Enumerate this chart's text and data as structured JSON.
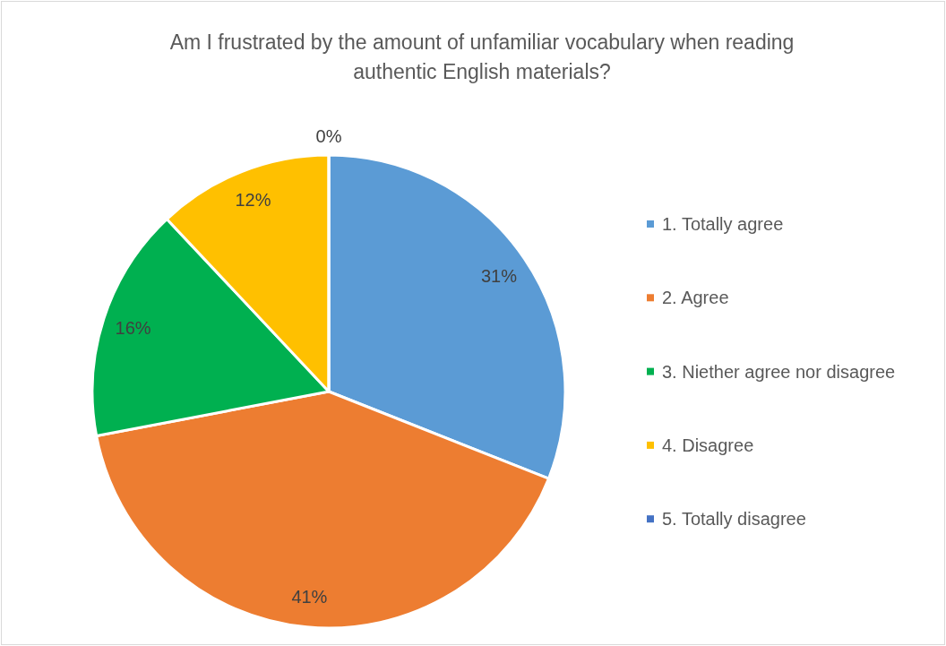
{
  "chart_data": {
    "type": "pie",
    "title": "Am I frustrated by the amount of unfamiliar vocabulary when reading authentic English materials?",
    "categories": [
      "1. Totally agree",
      "2. Agree",
      "3. Niether agree nor disagree",
      "4. Disagree",
      "5. Totally disagree"
    ],
    "values": [
      31,
      41,
      16,
      12,
      0
    ],
    "colors": [
      "#5b9bd5",
      "#ed7d31",
      "#00b050",
      "#ffc000",
      "#4472c4"
    ],
    "value_labels": [
      "31%",
      "41%",
      "16%",
      "12%",
      "0%"
    ],
    "legend": "right"
  }
}
